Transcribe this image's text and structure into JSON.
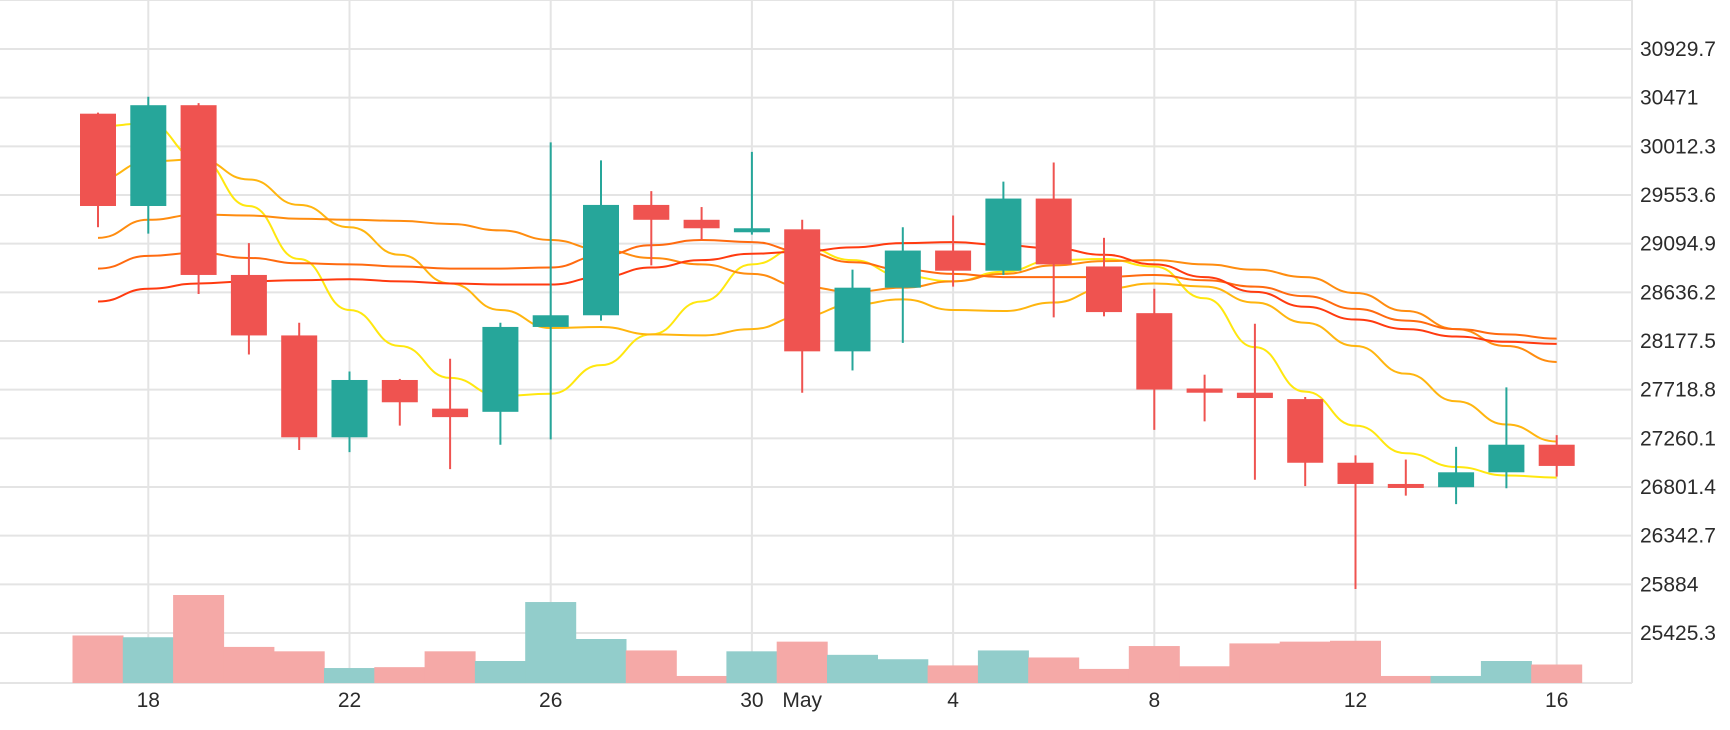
{
  "chart_data": {
    "type": "candlestick",
    "up_color": "#26a69a",
    "down_color": "#ef5350",
    "volume_up_color": "#92cdcb",
    "volume_down_color": "#f5a9a7",
    "grid": true,
    "y_axis": {
      "position": "right",
      "ylim": [
        25100,
        31180
      ],
      "tick_values": [
        30929.7,
        30471,
        30012.3,
        29553.6,
        29094.9,
        28636.2,
        28177.5,
        27718.8,
        27260.1,
        26801.4,
        26342.7,
        25884,
        25425.3
      ],
      "tick_labels": [
        "30929.7",
        "30471",
        "30012.3",
        "29553.6",
        "29094.9",
        "28636.2",
        "28177.5",
        "27718.8",
        "27260.1",
        "26801.4",
        "26342.7",
        "25884",
        "25425.3"
      ]
    },
    "x_axis": {
      "ticks": [
        {
          "index": 1,
          "label": "18"
        },
        {
          "index": 5,
          "label": "22"
        },
        {
          "index": 9,
          "label": "26"
        },
        {
          "index": 13,
          "label": "30"
        },
        {
          "index": 14,
          "label": "May"
        },
        {
          "index": 17,
          "label": "4"
        },
        {
          "index": 21,
          "label": "8"
        },
        {
          "index": 25,
          "label": "12"
        },
        {
          "index": 29,
          "label": "16"
        }
      ]
    },
    "candles": [
      {
        "date": "Apr 17",
        "open": 30320,
        "high": 30330,
        "low": 29250,
        "close": 29450
      },
      {
        "date": "Apr 18",
        "open": 29450,
        "high": 30480,
        "low": 29190,
        "close": 30400
      },
      {
        "date": "Apr 19",
        "open": 30400,
        "high": 30420,
        "low": 28620,
        "close": 28800
      },
      {
        "date": "Apr 20",
        "open": 28800,
        "high": 29100,
        "low": 28050,
        "close": 28230
      },
      {
        "date": "Apr 21",
        "open": 28230,
        "high": 28350,
        "low": 27150,
        "close": 27270
      },
      {
        "date": "Apr 22",
        "open": 27270,
        "high": 27890,
        "low": 27130,
        "close": 27810
      },
      {
        "date": "Apr 23",
        "open": 27810,
        "high": 27820,
        "low": 27380,
        "close": 27600
      },
      {
        "date": "Apr 24",
        "open": 27540,
        "high": 28010,
        "low": 26970,
        "close": 27460
      },
      {
        "date": "Apr 25",
        "open": 27510,
        "high": 28350,
        "low": 27200,
        "close": 28310
      },
      {
        "date": "Apr 26",
        "open": 28310,
        "high": 30050,
        "low": 27250,
        "close": 28420
      },
      {
        "date": "Apr 27",
        "open": 28420,
        "high": 29880,
        "low": 28370,
        "close": 29460
      },
      {
        "date": "Apr 28",
        "open": 29460,
        "high": 29590,
        "low": 28890,
        "close": 29320
      },
      {
        "date": "Apr 29",
        "open": 29320,
        "high": 29440,
        "low": 29130,
        "close": 29240
      },
      {
        "date": "Apr 30",
        "open": 29240,
        "high": 29960,
        "low": 29180,
        "close": 29240
      },
      {
        "date": "May 1",
        "open": 29230,
        "high": 29320,
        "low": 27690,
        "close": 28080
      },
      {
        "date": "May 2",
        "open": 28080,
        "high": 28850,
        "low": 27900,
        "close": 28680
      },
      {
        "date": "May 3",
        "open": 28680,
        "high": 29250,
        "low": 28160,
        "close": 29030
      },
      {
        "date": "May 4",
        "open": 29030,
        "high": 29360,
        "low": 28690,
        "close": 28840
      },
      {
        "date": "May 5",
        "open": 28840,
        "high": 29680,
        "low": 28800,
        "close": 29520
      },
      {
        "date": "May 6",
        "open": 29520,
        "high": 29860,
        "low": 28400,
        "close": 28900
      },
      {
        "date": "May 7",
        "open": 28880,
        "high": 29150,
        "low": 28410,
        "close": 28450
      },
      {
        "date": "May 8",
        "open": 28440,
        "high": 28670,
        "low": 27340,
        "close": 27720
      },
      {
        "date": "May 9",
        "open": 27730,
        "high": 27860,
        "low": 27420,
        "close": 27690
      },
      {
        "date": "May 10",
        "open": 27690,
        "high": 28340,
        "low": 26870,
        "close": 27640
      },
      {
        "date": "May 11",
        "open": 27630,
        "high": 27650,
        "low": 26810,
        "close": 27030
      },
      {
        "date": "May 12",
        "open": 27030,
        "high": 27100,
        "low": 25840,
        "close": 26830
      },
      {
        "date": "May 13",
        "open": 26830,
        "high": 27060,
        "low": 26720,
        "close": 26800
      },
      {
        "date": "May 14",
        "open": 26800,
        "high": 27180,
        "low": 26640,
        "close": 26940
      },
      {
        "date": "May 15",
        "open": 26940,
        "high": 27740,
        "low": 26790,
        "close": 27200
      },
      {
        "date": "May 16",
        "open": 27200,
        "high": 27290,
        "low": 26900,
        "close": 27000
      }
    ],
    "volume": {
      "max": 100,
      "values": [
        54,
        52,
        100,
        41,
        36,
        17,
        18,
        36,
        25,
        92,
        50,
        37,
        8,
        36,
        47,
        32,
        27,
        20,
        37,
        29,
        16,
        42,
        19,
        45,
        47,
        48,
        8,
        8,
        25,
        21
      ]
    },
    "moving_averages": [
      {
        "color": "#ffe70f",
        "values": [
          30200,
          30230,
          29900,
          29450,
          28950,
          28470,
          28130,
          27830,
          27660,
          27680,
          27950,
          28240,
          28550,
          28900,
          29070,
          28940,
          28790,
          28740,
          28830,
          28940,
          28950,
          28880,
          28580,
          28120,
          27700,
          27380,
          27120,
          26990,
          26910,
          26890
        ]
      },
      {
        "color": "#ffb50f",
        "values": [
          29700,
          29870,
          29890,
          29700,
          29460,
          29250,
          28990,
          28720,
          28470,
          28300,
          28310,
          28240,
          28230,
          28290,
          28410,
          28520,
          28570,
          28470,
          28460,
          28540,
          28670,
          28720,
          28690,
          28540,
          28350,
          28130,
          27870,
          27610,
          27390,
          27230
        ]
      },
      {
        "color": "#ff8c0f",
        "values": [
          29150,
          29320,
          29370,
          29360,
          29330,
          29320,
          29310,
          29280,
          29220,
          29130,
          29040,
          28960,
          28900,
          28810,
          28690,
          28640,
          28680,
          28740,
          28810,
          28890,
          28930,
          28940,
          28900,
          28850,
          28780,
          28630,
          28460,
          28290,
          28130,
          27980
        ]
      },
      {
        "color": "#ff6a0f",
        "values": [
          28860,
          28980,
          29010,
          28960,
          28910,
          28900,
          28880,
          28860,
          28860,
          28870,
          28980,
          29080,
          29130,
          29110,
          29020,
          28920,
          28850,
          28810,
          28780,
          28780,
          28780,
          28800,
          28750,
          28690,
          28600,
          28480,
          28370,
          28290,
          28240,
          28200
        ]
      },
      {
        "color": "#ff3a0f",
        "values": [
          28550,
          28670,
          28720,
          28740,
          28750,
          28760,
          28740,
          28720,
          28710,
          28710,
          28780,
          28870,
          28940,
          29000,
          29020,
          29060,
          29100,
          29110,
          29080,
          29050,
          28990,
          28900,
          28780,
          28640,
          28500,
          28380,
          28290,
          28220,
          28170,
          28150
        ]
      }
    ]
  }
}
